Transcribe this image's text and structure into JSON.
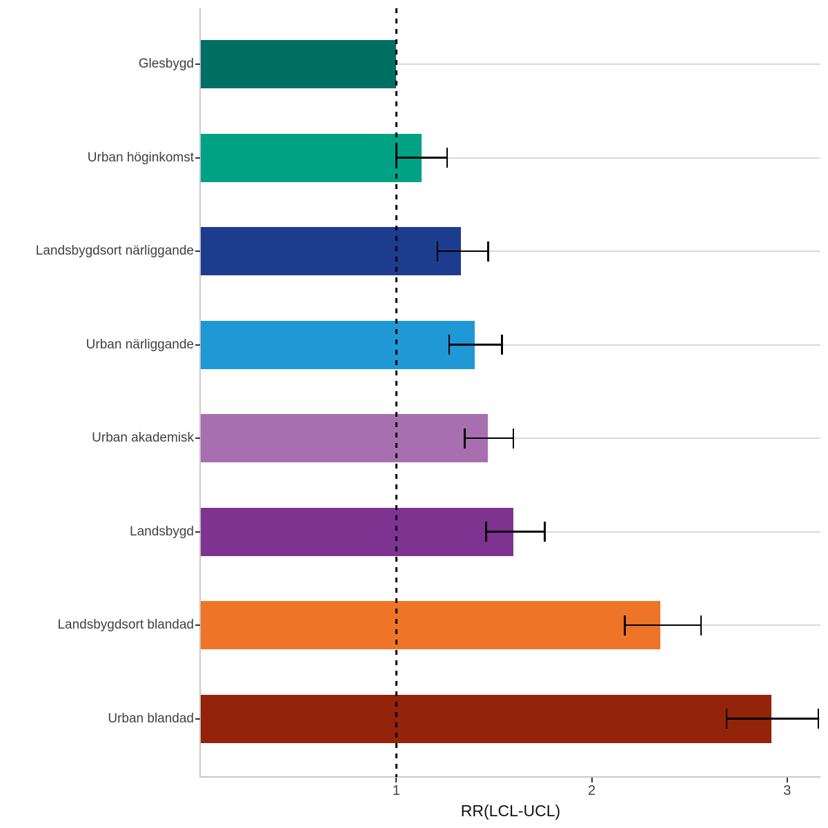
{
  "figure": {
    "background": "#ffffff",
    "description": "Horizontal bar chart of relative risk (RR) with 95% confidence interval error bars per area type, dashed reference line at RR = 1"
  },
  "chart_data": {
    "type": "bar",
    "orientation": "horizontal",
    "title": "",
    "xlabel": "RR(LCL-UCL)",
    "ylabel": "",
    "xlim": [
      0,
      3.17
    ],
    "grid": "horizontal-major-only",
    "legend": "none",
    "reference_line": {
      "x": 1,
      "style": "dashed",
      "color": "#000000"
    },
    "x_axis": {
      "title": "RR(LCL-UCL)",
      "ticks": [
        {
          "value": 1,
          "label": "1"
        },
        {
          "value": 2,
          "label": "2"
        },
        {
          "value": 3,
          "label": "3"
        }
      ]
    },
    "bars": [
      {
        "label": "Glesbygd",
        "rr": 1.0,
        "lcl": null,
        "ucl": null,
        "color": "#006E62"
      },
      {
        "label": "Urban höginkomst",
        "rr": 1.13,
        "lcl": 1.0,
        "ucl": 1.26,
        "color": "#00A286"
      },
      {
        "label": "Landsbygdsort närliggande",
        "rr": 1.33,
        "lcl": 1.21,
        "ucl": 1.47,
        "color": "#1E3C8E"
      },
      {
        "label": "Urban närliggande",
        "rr": 1.4,
        "lcl": 1.27,
        "ucl": 1.54,
        "color": "#1F98D5"
      },
      {
        "label": "Urban akademisk",
        "rr": 1.47,
        "lcl": 1.35,
        "ucl": 1.6,
        "color": "#A86FB0"
      },
      {
        "label": "Landsbygd",
        "rr": 1.6,
        "lcl": 1.46,
        "ucl": 1.76,
        "color": "#7F3390"
      },
      {
        "label": "Landsbygdsort blandad",
        "rr": 2.35,
        "lcl": 2.17,
        "ucl": 2.56,
        "color": "#EE7527"
      },
      {
        "label": "Urban blandad",
        "rr": 2.92,
        "lcl": 2.69,
        "ucl": 3.16,
        "color": "#932309"
      }
    ],
    "style": {
      "axis_line_color": "#C8C8C8",
      "gridline_color": "#D9D9D9",
      "tick_color": "#333333",
      "error_bar_color": "#000000",
      "text_color": "#404040"
    }
  }
}
